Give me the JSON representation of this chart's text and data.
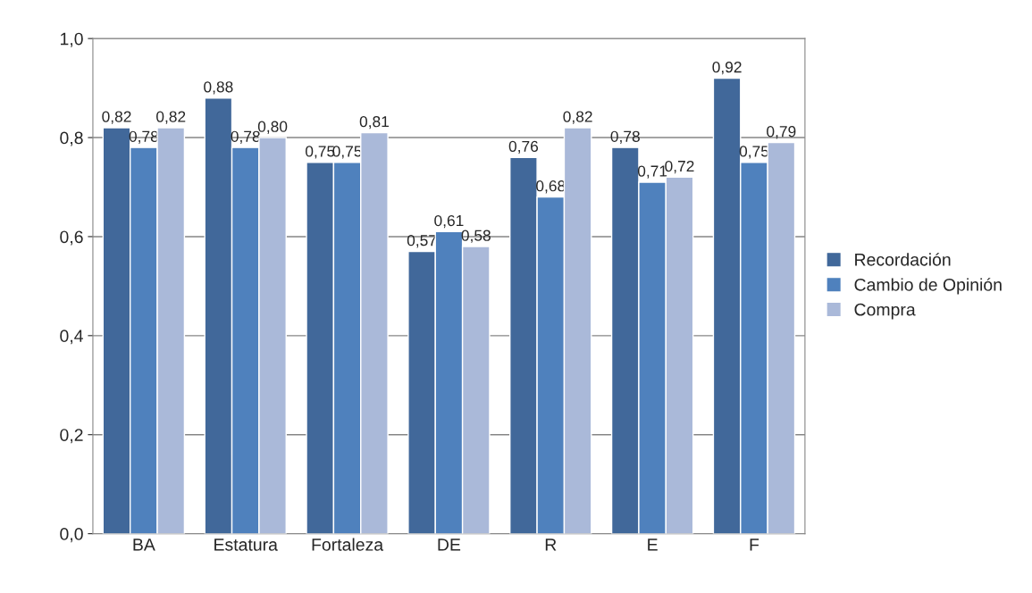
{
  "chart_data": {
    "type": "bar",
    "categories": [
      "BA",
      "Estatura",
      "Fortaleza",
      "DE",
      "R",
      "E",
      "F"
    ],
    "series": [
      {
        "name": "Recordación",
        "color": "#41689a",
        "values": [
          0.82,
          0.88,
          0.75,
          0.57,
          0.76,
          0.78,
          0.92
        ],
        "value_labels": [
          "0,82",
          "0,88",
          "0,75",
          "0,57",
          "0,76",
          "0,78",
          "0,92"
        ]
      },
      {
        "name": "Cambio de Opinión",
        "color": "#4f81bd",
        "values": [
          0.78,
          0.78,
          0.75,
          0.61,
          0.68,
          0.71,
          0.75
        ],
        "value_labels": [
          "0,78",
          "0,78",
          "0,75",
          "0,61",
          "0,68",
          "0,71",
          "0,75"
        ]
      },
      {
        "name": "Compra",
        "color": "#aab9d9",
        "values": [
          0.82,
          0.8,
          0.81,
          0.58,
          0.82,
          0.72,
          0.79
        ],
        "value_labels": [
          "0,82",
          "0,80",
          "0,81",
          "0,58",
          "0,82",
          "0,72",
          "0,79"
        ]
      }
    ],
    "ylim": [
      0,
      1
    ],
    "yticks": [
      {
        "value": 0,
        "label": "0,0"
      },
      {
        "value": 0.2,
        "label": "0,2"
      },
      {
        "value": 0.4,
        "label": "0,4"
      },
      {
        "value": 0.6,
        "label": "0,6"
      },
      {
        "value": 0.8,
        "label": "0,8"
      },
      {
        "value": 1.0,
        "label": "1,0"
      }
    ],
    "grid": "y",
    "legend": "right"
  }
}
